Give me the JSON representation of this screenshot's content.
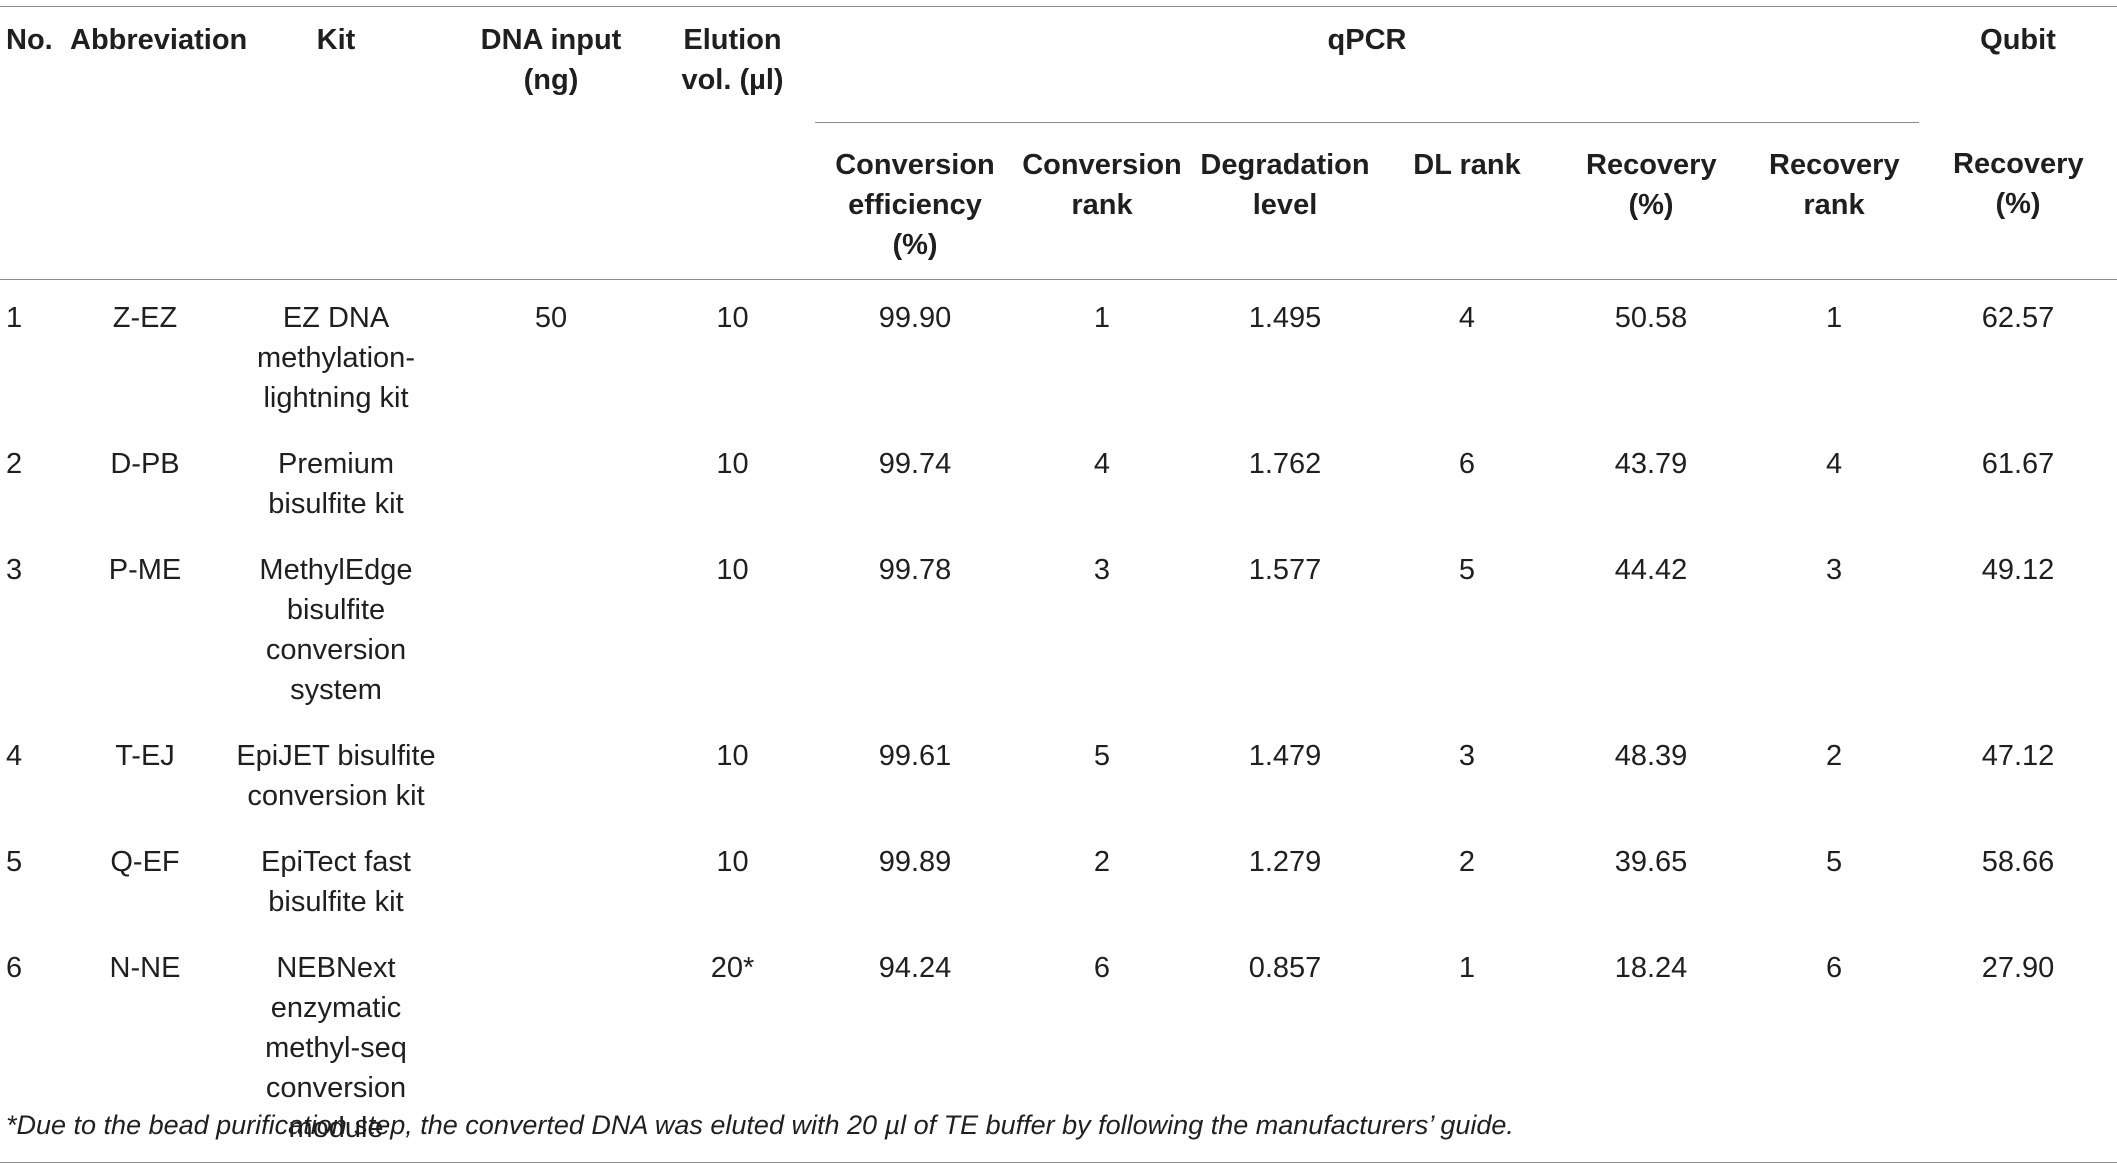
{
  "headers": {
    "no": "No.",
    "abbreviation": "Abbreviation",
    "kit": "Kit",
    "dna_input": "DNA input (ng)",
    "elution_vol": "Elution vol. (µl)",
    "qpcr": "qPCR",
    "qubit": "Qubit",
    "conversion_efficiency": "Conversion efficiency (%)",
    "conversion_rank": "Conversion rank",
    "degradation_level": "Degradation level",
    "dl_rank": "DL rank",
    "recovery_pct": "Recovery (%)",
    "recovery_rank": "Recovery rank",
    "qubit_recovery": "Recovery (%)"
  },
  "rows": [
    {
      "no": "1",
      "abbr": "Z-EZ",
      "kit": "EZ DNA methylation-lightning kit",
      "dna_input": "50",
      "elution": "10",
      "conv_eff": "99.90",
      "conv_rank": "1",
      "deg": "1.495",
      "dl_rank": "4",
      "recovery": "50.58",
      "rec_rank": "1",
      "qubit": "62.57"
    },
    {
      "no": "2",
      "abbr": "D-PB",
      "kit": "Premium bisulfite kit",
      "dna_input": "",
      "elution": "10",
      "conv_eff": "99.74",
      "conv_rank": "4",
      "deg": "1.762",
      "dl_rank": "6",
      "recovery": "43.79",
      "rec_rank": "4",
      "qubit": "61.67"
    },
    {
      "no": "3",
      "abbr": "P-ME",
      "kit": "MethylEdge bisulfite conversion system",
      "dna_input": "",
      "elution": "10",
      "conv_eff": "99.78",
      "conv_rank": "3",
      "deg": "1.577",
      "dl_rank": "5",
      "recovery": "44.42",
      "rec_rank": "3",
      "qubit": "49.12"
    },
    {
      "no": "4",
      "abbr": "T-EJ",
      "kit": "EpiJET bisulfite conversion kit",
      "dna_input": "",
      "elution": "10",
      "conv_eff": "99.61",
      "conv_rank": "5",
      "deg": "1.479",
      "dl_rank": "3",
      "recovery": "48.39",
      "rec_rank": "2",
      "qubit": "47.12"
    },
    {
      "no": "5",
      "abbr": "Q-EF",
      "kit": "EpiTect fast bisulfite kit",
      "dna_input": "",
      "elution": "10",
      "conv_eff": "99.89",
      "conv_rank": "2",
      "deg": "1.279",
      "dl_rank": "2",
      "recovery": "39.65",
      "rec_rank": "5",
      "qubit": "58.66"
    },
    {
      "no": "6",
      "abbr": "N-NE",
      "kit": "NEBNext enzymatic methyl-seq conversion module",
      "dna_input": "",
      "elution": "20*",
      "conv_eff": "94.24",
      "conv_rank": "6",
      "deg": "0.857",
      "dl_rank": "1",
      "recovery": "18.24",
      "rec_rank": "6",
      "qubit": "27.90"
    }
  ],
  "footnote": "*Due to the bead purification step, the converted DNA was eluted with 20 µl of TE buffer by following the manufacturers’ guide."
}
